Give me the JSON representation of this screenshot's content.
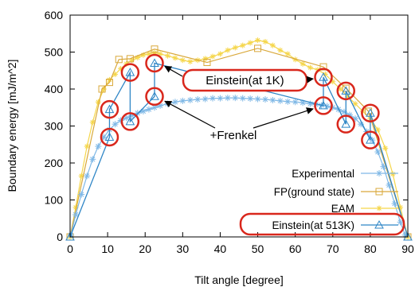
{
  "chart_data": {
    "type": "line",
    "xlabel": "Tilt angle [degree]",
    "ylabel": "Boundary energy [mJ/m^2]",
    "xlim": [
      0,
      90
    ],
    "ylim": [
      0,
      600
    ],
    "x_ticks": [
      0,
      10,
      20,
      30,
      40,
      50,
      60,
      70,
      80,
      90
    ],
    "y_ticks": [
      0,
      100,
      200,
      300,
      400,
      500,
      600
    ],
    "grid": false,
    "legend_position": "bottom-right",
    "series": [
      {
        "name": "Experimental",
        "marker": "asterisk",
        "color": "#7fb8e6",
        "x": [
          0.2,
          1.5,
          3,
          4.5,
          6,
          7.5,
          9,
          10.5,
          12,
          13.5,
          15,
          16.5,
          18,
          19.5,
          21,
          22.5,
          24,
          26,
          28,
          30,
          32,
          34,
          36,
          38,
          40,
          42,
          44,
          46,
          48,
          50,
          52,
          54,
          56,
          58,
          60,
          62,
          64,
          65.5,
          67,
          68.5,
          70,
          71.5,
          73,
          74.5,
          76,
          77.5,
          79,
          80.5,
          82,
          83.5,
          85,
          86.5,
          88,
          89.3
        ],
        "y": [
          5,
          60,
          115,
          165,
          210,
          245,
          270,
          290,
          305,
          315,
          322,
          328,
          335,
          340,
          345,
          350,
          355,
          360,
          365,
          368,
          370,
          372,
          373,
          375,
          375,
          376,
          376,
          375,
          374,
          373,
          372,
          370,
          368,
          366,
          365,
          363,
          360,
          358,
          356,
          354,
          350,
          345,
          338,
          330,
          320,
          305,
          285,
          262,
          230,
          190,
          140,
          90,
          40,
          5
        ]
      },
      {
        "name": "FP(ground state)",
        "marker": "square",
        "color": "#d9a83a",
        "x": [
          0,
          8.5,
          10.5,
          13,
          16,
          22.5,
          36.5,
          50,
          67.5,
          73.5,
          79.5,
          90
        ],
        "y": [
          0,
          400,
          418,
          480,
          482,
          508,
          472,
          510,
          460,
          402,
          340,
          0
        ]
      },
      {
        "name": "EAM",
        "marker": "star",
        "color": "#f5d64a",
        "x": [
          0,
          1.5,
          3,
          4.5,
          6,
          7.5,
          9,
          10.5,
          12,
          13.5,
          15,
          16.5,
          18,
          19.5,
          21,
          22.5,
          24,
          26,
          28,
          30,
          32,
          34,
          36,
          38,
          40,
          42,
          44,
          46,
          48,
          50,
          52,
          54,
          56,
          58,
          60,
          62,
          64,
          66,
          68,
          70,
          72,
          74,
          76,
          78,
          80,
          82,
          84,
          86,
          88,
          90
        ],
        "y": [
          0,
          80,
          165,
          245,
          310,
          365,
          400,
          425,
          440,
          455,
          468,
          478,
          485,
          492,
          495,
          498,
          495,
          490,
          484,
          478,
          474,
          478,
          482,
          488,
          495,
          505,
          512,
          518,
          525,
          532,
          528,
          518,
          505,
          495,
          480,
          468,
          458,
          452,
          440,
          420,
          400,
          380,
          360,
          340,
          320,
          290,
          240,
          170,
          80,
          0
        ]
      },
      {
        "name": "Einstein(at 513K)",
        "marker": "triangle",
        "color": "#2f86c6",
        "x": [
          0,
          10.5,
          10.5,
          16,
          16,
          22.5,
          22.5,
          67.5,
          67.5,
          73.5,
          73.5,
          80,
          80,
          90
        ],
        "y": [
          0,
          270,
          345,
          445,
          312,
          380,
          470,
          355,
          432,
          305,
          395,
          262,
          335,
          0
        ]
      }
    ],
    "annotations": [
      {
        "text": "Einstein(at 1K)",
        "arrows_to": [
          [
            22.5,
            470
          ],
          [
            67.5,
            432
          ]
        ]
      },
      {
        "text": "+Frenkel",
        "arrows_to": [
          [
            22.5,
            380
          ],
          [
            67.5,
            355
          ]
        ]
      }
    ],
    "highlight_circles": [
      [
        10.5,
        345
      ],
      [
        10.5,
        270
      ],
      [
        16,
        445
      ],
      [
        16,
        312
      ],
      [
        22.5,
        470
      ],
      [
        22.5,
        380
      ],
      [
        67.5,
        432
      ],
      [
        67.5,
        355
      ],
      [
        73.5,
        395
      ],
      [
        73.5,
        305
      ],
      [
        80,
        335
      ],
      [
        80,
        262
      ]
    ],
    "colors": {
      "highlight": "#d9271c",
      "axis": "#000000"
    }
  }
}
